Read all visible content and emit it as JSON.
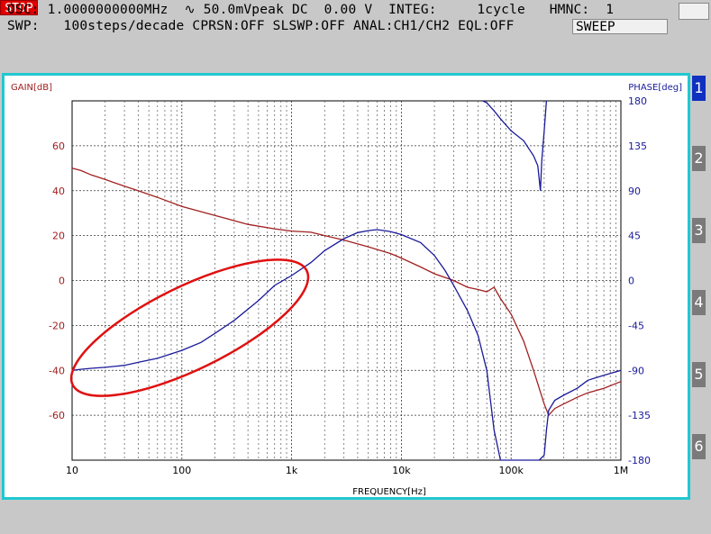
{
  "header": {
    "line1": "OSC: 1.0000000000MHz  ∿ 50.0mVpeak DC  0.00 V  INTEG:     1cycle   HMNC:  1",
    "line2": "SWP:   100steps/decade CPRSN:OFF SLSWP:OFF ANAL:CH1/CH2 EQL:OFF",
    "sweep_label": "SWEEP",
    "stop_label": "STOP"
  },
  "tabs": [
    "1",
    "2",
    "3",
    "4",
    "5",
    "6"
  ],
  "active_tab": "1",
  "colors": {
    "gain": "#a02020",
    "phase": "#1a1a9a",
    "highlight": "#e01010",
    "frame": "#20c8d0"
  },
  "chart_data": {
    "type": "line",
    "xlabel": "FREQUENCY[Hz]",
    "ylabel_left": "GAIN[dB]",
    "ylabel_right": "PHASE[deg]",
    "xscale": "log",
    "xlim": [
      10,
      1000000
    ],
    "x_ticks": [
      10,
      100,
      1000,
      10000,
      100000,
      1000000
    ],
    "x_tick_labels": [
      "10",
      "100",
      "1k",
      "10k",
      "100k",
      "1M"
    ],
    "ylim_left": [
      -80,
      80
    ],
    "y_ticks_left": [
      -60,
      -40,
      -20,
      0,
      20,
      40,
      60
    ],
    "ylim_right": [
      -180,
      180
    ],
    "y_ticks_right": [
      -180,
      -135,
      -90,
      -45,
      0,
      45,
      90,
      135,
      180
    ],
    "grid": true,
    "series": [
      {
        "name": "GAIN[dB]",
        "axis": "left",
        "x": [
          10,
          12,
          15,
          20,
          30,
          40,
          60,
          100,
          200,
          400,
          700,
          1000,
          1500,
          2000,
          3000,
          5000,
          8000,
          10000,
          15000,
          20000,
          30000,
          40000,
          50000,
          60000,
          70000,
          80000,
          100000,
          130000,
          160000,
          200000,
          220000,
          250000,
          300000,
          400000,
          500000,
          700000,
          1000000
        ],
        "values": [
          50,
          49,
          47,
          45,
          42,
          40,
          37,
          33,
          29,
          25,
          23,
          22,
          21.5,
          20,
          18,
          15,
          12,
          10,
          6,
          3,
          0,
          -3,
          -4,
          -5,
          -3,
          -8,
          -15,
          -27,
          -40,
          -55,
          -60,
          -57,
          -55,
          -52,
          -50,
          -48,
          -45
        ]
      },
      {
        "name": "PHASE[deg]",
        "axis": "right",
        "x": [
          10,
          12,
          15,
          20,
          30,
          40,
          60,
          100,
          150,
          200,
          300,
          500,
          700,
          1000,
          1500,
          2000,
          3000,
          4000,
          5000,
          6000,
          7000,
          8000,
          10000,
          15000,
          20000,
          25000,
          30000,
          40000,
          50000,
          60000,
          70000,
          80000,
          100000,
          120000,
          150000,
          180000,
          200000,
          210000,
          220000,
          250000,
          300000,
          400000,
          500000,
          700000,
          1000000
        ],
        "values": [
          -90,
          -89,
          -88,
          -87,
          -85,
          -82,
          -78,
          -70,
          -62,
          -53,
          -40,
          -20,
          -5,
          5,
          18,
          30,
          42,
          48,
          50,
          51,
          50,
          49,
          46,
          38,
          25,
          10,
          -5,
          -30,
          -55,
          -90,
          -150,
          -180,
          -180,
          -180,
          -180,
          -180,
          -175,
          -150,
          -130,
          -120,
          -115,
          -108,
          -100,
          -95,
          -90
        ]
      },
      {
        "name": "PHASE[deg] (wrapped)",
        "axis": "right",
        "x": [
          55000,
          60000,
          70000,
          80000,
          100000,
          130000,
          160000,
          175000,
          185000,
          190000,
          200000,
          210000
        ],
        "values": [
          180,
          178,
          170,
          162,
          150,
          140,
          125,
          115,
          90,
          120,
          150,
          180
        ]
      }
    ],
    "annotation": {
      "shape": "ellipse",
      "description_x_range": [
        10,
        1500
      ]
    }
  }
}
